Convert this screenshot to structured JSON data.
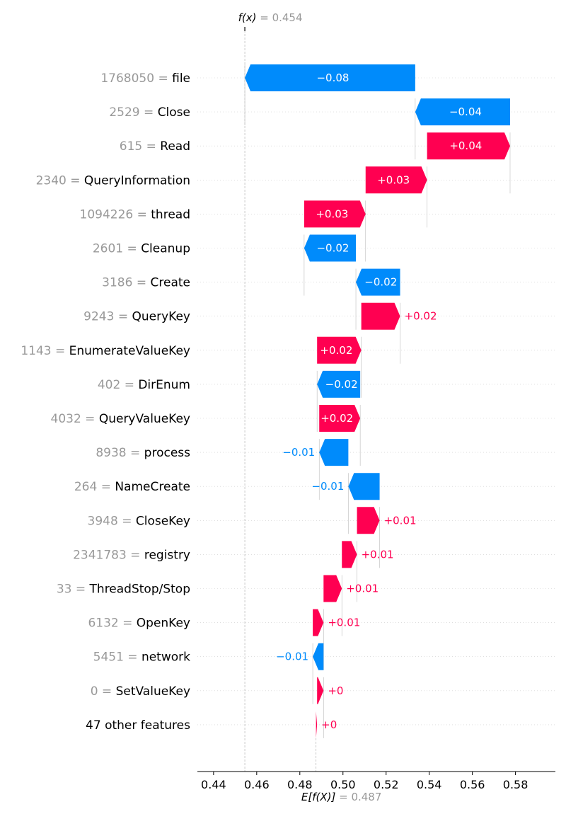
{
  "chart_data": {
    "type": "waterfall",
    "fx_label": "f(x)",
    "fx_value": "0.454",
    "ex_label": "E[f(X)]",
    "ex_value": "0.487",
    "fx": 0.4545,
    "ex": 0.4875,
    "xlim": [
      0.4325,
      0.5985
    ],
    "xticks": [
      0.44,
      0.46,
      0.48,
      0.5,
      0.52,
      0.54,
      0.56,
      0.58
    ],
    "xtick_labels": [
      "0.44",
      "0.46",
      "0.48",
      "0.50",
      "0.52",
      "0.54",
      "0.56",
      "0.58"
    ],
    "features": [
      {
        "value": "1768050",
        "name": "file",
        "label": "−0.08",
        "start": 0.5335,
        "end": 0.4545
      },
      {
        "value": "2529",
        "name": "Close",
        "label": "−0.04",
        "start": 0.5775,
        "end": 0.5335
      },
      {
        "value": "615",
        "name": "Read",
        "label": "+0.04",
        "start": 0.539,
        "end": 0.5775
      },
      {
        "value": "2340",
        "name": "QueryInformation",
        "label": "+0.03",
        "start": 0.5105,
        "end": 0.539
      },
      {
        "value": "1094226",
        "name": "thread",
        "label": "+0.03",
        "start": 0.482,
        "end": 0.5105
      },
      {
        "value": "2601",
        "name": "Cleanup",
        "label": "−0.02",
        "start": 0.506,
        "end": 0.482
      },
      {
        "value": "3186",
        "name": "Create",
        "label": "−0.02",
        "start": 0.5265,
        "end": 0.506
      },
      {
        "value": "9243",
        "name": "QueryKey",
        "label": "+0.02",
        "start": 0.5085,
        "end": 0.5265
      },
      {
        "value": "1143",
        "name": "EnumerateValueKey",
        "label": "+0.02",
        "start": 0.488,
        "end": 0.5085
      },
      {
        "value": "402",
        "name": "DirEnum",
        "label": "−0.02",
        "start": 0.508,
        "end": 0.488
      },
      {
        "value": "4032",
        "name": "QueryValueKey",
        "label": "+0.02",
        "start": 0.489,
        "end": 0.508
      },
      {
        "value": "8938",
        "name": "process",
        "label": "−0.01",
        "start": 0.5025,
        "end": 0.489
      },
      {
        "value": "264",
        "name": "NameCreate",
        "label": "−0.01",
        "start": 0.517,
        "end": 0.5025
      },
      {
        "value": "3948",
        "name": "CloseKey",
        "label": "+0.01",
        "start": 0.5065,
        "end": 0.517
      },
      {
        "value": "2341783",
        "name": "registry",
        "label": "+0.01",
        "start": 0.4995,
        "end": 0.5065
      },
      {
        "value": "33",
        "name": "ThreadStop/Stop",
        "label": "+0.01",
        "start": 0.491,
        "end": 0.4995
      },
      {
        "value": "6132",
        "name": "OpenKey",
        "label": "+0.01",
        "start": 0.486,
        "end": 0.491
      },
      {
        "value": "5451",
        "name": "network",
        "label": "−0.01",
        "start": 0.491,
        "end": 0.486
      },
      {
        "value": "0",
        "name": "SetValueKey",
        "label": "+0",
        "start": 0.488,
        "end": 0.491
      },
      {
        "value": "",
        "name": "47 other features",
        "label": "+0",
        "start": 0.4875,
        "end": 0.488
      }
    ],
    "colors": {
      "positive": "#ff0051",
      "negative": "#008bfb",
      "value_text": "#999999",
      "name_text": "#000000",
      "grid": "#cccccc"
    }
  }
}
